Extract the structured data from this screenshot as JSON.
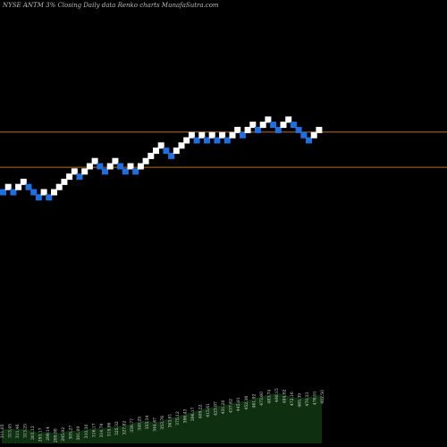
{
  "chart_data": {
    "type": "renko",
    "title": "NYSE ANTM 3% Closing Daily data  Renko  charts MunafaSutra.com",
    "colors": {
      "background": "#000000",
      "up_brick": "#ffffff",
      "down_brick": "#1f6fe0",
      "reference_line": "#b87020",
      "volume_fill": "#0f3010"
    },
    "bricks": [
      {
        "i": 0,
        "level": 0,
        "dir": "down"
      },
      {
        "i": 1,
        "level": 1,
        "dir": "up"
      },
      {
        "i": 2,
        "level": 0,
        "dir": "down"
      },
      {
        "i": 3,
        "level": 1,
        "dir": "up"
      },
      {
        "i": 4,
        "level": 2,
        "dir": "up"
      },
      {
        "i": 5,
        "level": 1,
        "dir": "down"
      },
      {
        "i": 6,
        "level": 0,
        "dir": "down"
      },
      {
        "i": 7,
        "level": -1,
        "dir": "down"
      },
      {
        "i": 8,
        "level": 0,
        "dir": "up"
      },
      {
        "i": 9,
        "level": -1,
        "dir": "down"
      },
      {
        "i": 10,
        "level": 0,
        "dir": "up"
      },
      {
        "i": 11,
        "level": 1,
        "dir": "up"
      },
      {
        "i": 12,
        "level": 2,
        "dir": "up"
      },
      {
        "i": 13,
        "level": 3,
        "dir": "up"
      },
      {
        "i": 14,
        "level": 4,
        "dir": "up"
      },
      {
        "i": 15,
        "level": 3,
        "dir": "down"
      },
      {
        "i": 16,
        "level": 4,
        "dir": "up"
      },
      {
        "i": 17,
        "level": 5,
        "dir": "up"
      },
      {
        "i": 18,
        "level": 6,
        "dir": "up"
      },
      {
        "i": 19,
        "level": 5,
        "dir": "down"
      },
      {
        "i": 20,
        "level": 4,
        "dir": "down"
      },
      {
        "i": 21,
        "level": 5,
        "dir": "up"
      },
      {
        "i": 22,
        "level": 6,
        "dir": "up"
      },
      {
        "i": 23,
        "level": 5,
        "dir": "down"
      },
      {
        "i": 24,
        "level": 4,
        "dir": "down"
      },
      {
        "i": 25,
        "level": 5,
        "dir": "up"
      },
      {
        "i": 26,
        "level": 4,
        "dir": "down"
      },
      {
        "i": 27,
        "level": 5,
        "dir": "up"
      },
      {
        "i": 28,
        "level": 6,
        "dir": "up"
      },
      {
        "i": 29,
        "level": 7,
        "dir": "up"
      },
      {
        "i": 30,
        "level": 8,
        "dir": "up"
      },
      {
        "i": 31,
        "level": 9,
        "dir": "up"
      },
      {
        "i": 32,
        "level": 8,
        "dir": "down"
      },
      {
        "i": 33,
        "level": 7,
        "dir": "down"
      },
      {
        "i": 34,
        "level": 8,
        "dir": "up"
      },
      {
        "i": 35,
        "level": 9,
        "dir": "up"
      },
      {
        "i": 36,
        "level": 10,
        "dir": "up"
      },
      {
        "i": 37,
        "level": 11,
        "dir": "up"
      },
      {
        "i": 38,
        "level": 10,
        "dir": "down"
      },
      {
        "i": 39,
        "level": 11,
        "dir": "up"
      },
      {
        "i": 40,
        "level": 10,
        "dir": "down"
      },
      {
        "i": 41,
        "level": 11,
        "dir": "up"
      },
      {
        "i": 42,
        "level": 10,
        "dir": "down"
      },
      {
        "i": 43,
        "level": 11,
        "dir": "up"
      },
      {
        "i": 44,
        "level": 10,
        "dir": "down"
      },
      {
        "i": 45,
        "level": 11,
        "dir": "up"
      },
      {
        "i": 46,
        "level": 12,
        "dir": "up"
      },
      {
        "i": 47,
        "level": 11,
        "dir": "down"
      },
      {
        "i": 48,
        "level": 12,
        "dir": "up"
      },
      {
        "i": 49,
        "level": 13,
        "dir": "up"
      },
      {
        "i": 50,
        "level": 12,
        "dir": "down"
      },
      {
        "i": 51,
        "level": 13,
        "dir": "up"
      },
      {
        "i": 52,
        "level": 14,
        "dir": "up"
      },
      {
        "i": 53,
        "level": 13,
        "dir": "down"
      },
      {
        "i": 54,
        "level": 12,
        "dir": "down"
      },
      {
        "i": 55,
        "level": 13,
        "dir": "up"
      },
      {
        "i": 56,
        "level": 14,
        "dir": "up"
      },
      {
        "i": 57,
        "level": 13,
        "dir": "down"
      },
      {
        "i": 58,
        "level": 12,
        "dir": "down"
      },
      {
        "i": 59,
        "level": 11,
        "dir": "down"
      },
      {
        "i": 60,
        "level": 10,
        "dir": "down"
      },
      {
        "i": 61,
        "level": 11,
        "dir": "up"
      },
      {
        "i": 62,
        "level": 12,
        "dir": "up"
      }
    ],
    "reference_levels": [
      12.2,
      5.4
    ],
    "volume_labels": [
      "311.05",
      "313.45",
      "311.46",
      "313.25",
      "303.12",
      "293.17",
      "299.14",
      "289.88",
      "295.92",
      "305.27",
      "301.09",
      "310.30",
      "316.17",
      "314.79",
      "319.96",
      "325.32",
      "327.82",
      "339.77",
      "349.25",
      "355.34",
      "344.67",
      "353.76",
      "363.91",
      "375.12",
      "386.43",
      "396.17",
      "409.22",
      "415.61",
      "423.87",
      "431.20",
      "437.62",
      "445.81",
      "452.36",
      "461.92",
      "473.60",
      "483.74",
      "490.15",
      "484.82",
      "472.16",
      "465.39",
      "470.33",
      "476.91",
      "482.50"
    ]
  }
}
